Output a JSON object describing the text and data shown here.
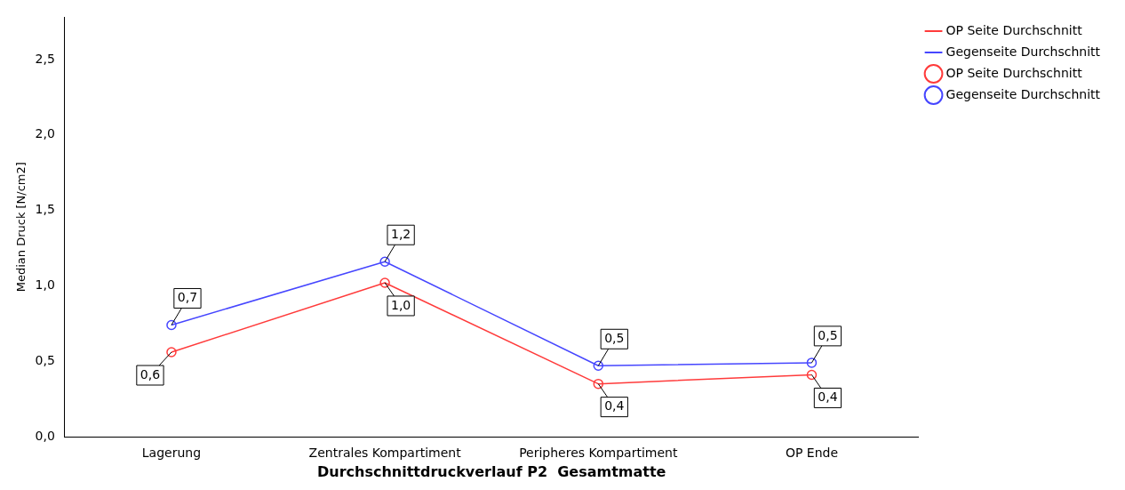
{
  "chart_data": {
    "type": "line",
    "xlabel": "Durchschnittdruckverlauf P2  Gesamtmatte",
    "ylabel": "Median Druck [N/cm2]",
    "categories": [
      "Lagerung",
      "Zentrales Kompartiment",
      "Peripheres Kompartiment",
      "OP Ende"
    ],
    "series": [
      {
        "name": "OP Seite Durchschnitt",
        "color": "#ff3b3b",
        "values": [
          0.56,
          1.02,
          0.35,
          0.41
        ],
        "value_labels": [
          "0,6",
          "1,0",
          "0,4",
          "0,4"
        ]
      },
      {
        "name": "Gegenseite Durchschnitt",
        "color": "#4646ff",
        "values": [
          0.74,
          1.16,
          0.47,
          0.49
        ],
        "value_labels": [
          "0,7",
          "1,2",
          "0,5",
          "0,5"
        ]
      }
    ],
    "ylim": [
      0,
      2.78
    ],
    "yticks": [
      {
        "value": 0,
        "label": "0,0"
      },
      {
        "value": 0.5,
        "label": "0,5"
      },
      {
        "value": 1,
        "label": "1,0"
      },
      {
        "value": 1.5,
        "label": "1,5"
      },
      {
        "value": 2,
        "label": "2,0"
      },
      {
        "value": 2.5,
        "label": "2,5"
      }
    ],
    "grid": false,
    "legend": "top right",
    "marker": "circle",
    "line_style": "solid"
  }
}
